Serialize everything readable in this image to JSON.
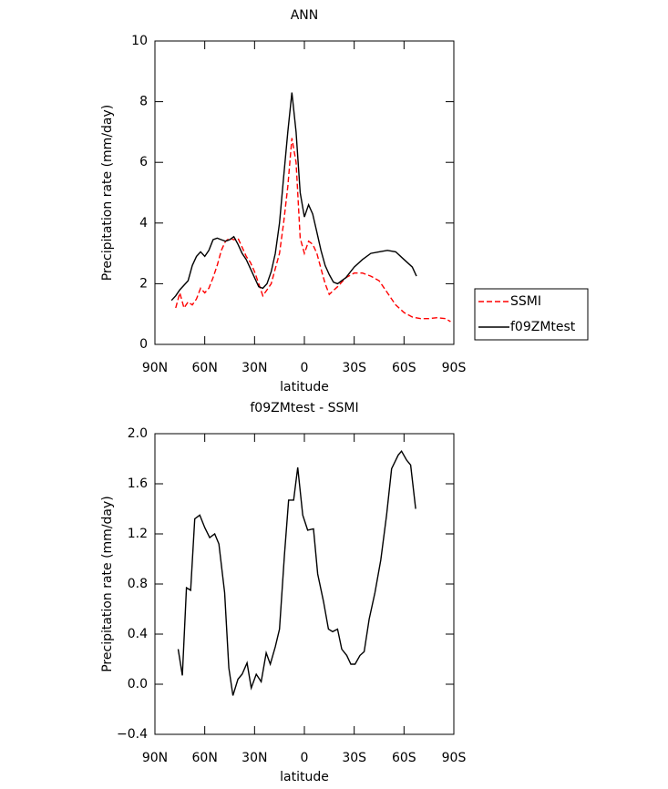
{
  "chart_data": [
    {
      "type": "line",
      "title": "ANN",
      "xlabel": "latitude",
      "ylabel": "Precipitation rate (mm/day)",
      "xlim": [
        90,
        -90
      ],
      "xticks": [
        {
          "value": 90,
          "label": "90N"
        },
        {
          "value": 60,
          "label": "60N"
        },
        {
          "value": 30,
          "label": "30N"
        },
        0,
        {
          "value": -30,
          "label": "30S"
        },
        {
          "value": -60,
          "label": "60S"
        },
        {
          "value": -90,
          "label": "90S"
        }
      ],
      "ylim": [
        0,
        10
      ],
      "yticks": [
        0,
        2,
        4,
        6,
        8,
        10
      ],
      "legend": "right",
      "series": [
        {
          "name": "SSMI",
          "color": "#ff0000",
          "style": "dashed",
          "x": [
            77.5,
            75,
            72.5,
            70,
            67.5,
            65,
            62.5,
            60,
            57.5,
            55,
            52.5,
            50,
            47.5,
            45,
            42.5,
            40,
            37.5,
            35,
            32.5,
            30,
            27.5,
            25,
            22.5,
            20,
            17.5,
            15,
            12.5,
            10,
            7.5,
            5,
            2.5,
            0,
            -2.5,
            -5,
            -7.5,
            -10,
            -12.5,
            -15,
            -20,
            -25,
            -30,
            -35,
            -40,
            -45,
            -50,
            -55,
            -60,
            -65,
            -70,
            -75,
            -80,
            -85,
            -88
          ],
          "values": [
            1.2,
            1.7,
            1.2,
            1.4,
            1.3,
            1.5,
            1.85,
            1.7,
            1.85,
            2.2,
            2.6,
            3.1,
            3.4,
            3.5,
            3.45,
            3.5,
            3.2,
            2.9,
            2.7,
            2.4,
            2.0,
            1.6,
            1.8,
            2.0,
            2.5,
            3.0,
            4.0,
            5.2,
            6.8,
            6.0,
            3.5,
            3.0,
            3.4,
            3.3,
            3.0,
            2.5,
            2.0,
            1.65,
            1.9,
            2.2,
            2.35,
            2.35,
            2.25,
            2.1,
            1.7,
            1.3,
            1.05,
            0.9,
            0.85,
            0.85,
            0.88,
            0.85,
            0.75
          ]
        },
        {
          "name": "f09ZMtest",
          "color": "#000000",
          "style": "solid",
          "x": [
            80,
            77.5,
            75,
            70,
            67.5,
            65,
            62.5,
            60,
            57.5,
            55,
            52.5,
            50,
            47.5,
            45,
            42.5,
            40,
            37.5,
            35,
            32.5,
            30,
            27.5,
            25,
            22.5,
            20,
            17.5,
            15,
            12.5,
            10,
            7.5,
            5,
            2.5,
            0,
            -2.5,
            -5,
            -7.5,
            -10,
            -12.5,
            -15,
            -17.5,
            -20,
            -25,
            -30,
            -35,
            -40,
            -45,
            -50,
            -55,
            -60,
            -65,
            -67.5
          ],
          "values": [
            1.45,
            1.6,
            1.8,
            2.1,
            2.6,
            2.9,
            3.05,
            2.9,
            3.1,
            3.45,
            3.5,
            3.45,
            3.4,
            3.45,
            3.55,
            3.3,
            3.0,
            2.8,
            2.5,
            2.2,
            1.9,
            1.85,
            2.0,
            2.4,
            3.0,
            4.0,
            5.5,
            7.0,
            8.3,
            7.0,
            5.0,
            4.2,
            4.6,
            4.3,
            3.7,
            3.1,
            2.6,
            2.3,
            2.05,
            2.0,
            2.2,
            2.55,
            2.8,
            3.0,
            3.05,
            3.1,
            3.05,
            2.8,
            2.55,
            2.25
          ]
        }
      ]
    },
    {
      "type": "line",
      "title": "f09ZMtest - SSMI",
      "xlabel": "latitude",
      "ylabel": "Precipitation rate (mm/day)",
      "xlim": [
        90,
        -90
      ],
      "xticks": [
        {
          "value": 90,
          "label": "90N"
        },
        {
          "value": 60,
          "label": "60N"
        },
        {
          "value": 30,
          "label": "30N"
        },
        0,
        {
          "value": -30,
          "label": "30S"
        },
        {
          "value": -60,
          "label": "60S"
        },
        {
          "value": -90,
          "label": "90S"
        }
      ],
      "ylim": [
        -0.4,
        2.0
      ],
      "yticks": [
        {
          "value": -0.4,
          "label": "−0.4"
        },
        {
          "value": 0,
          "label": "0.0"
        },
        0.4,
        0.8,
        1.2,
        1.6,
        {
          "value": 2.0,
          "label": "2.0"
        }
      ],
      "series": [
        {
          "color": "#000000",
          "style": "solid",
          "x": [
            76,
            73.5,
            71,
            68.5,
            66,
            63,
            60,
            57,
            54,
            51.5,
            48,
            45.5,
            43,
            40,
            37.5,
            34.5,
            32,
            29,
            26,
            23,
            20.5,
            17.5,
            15,
            12,
            9.5,
            6.5,
            4,
            1,
            -2,
            -5.5,
            -8,
            -11.5,
            -14.5,
            -17,
            -20,
            -22.5,
            -25.5,
            -28,
            -30.5,
            -33.5,
            -36,
            -39,
            -42.5,
            -46,
            -49.5,
            -52.5,
            -56.5,
            -58.5,
            -61.5,
            -64,
            -67
          ],
          "values": [
            0.28,
            0.07,
            0.77,
            0.75,
            1.32,
            1.35,
            1.25,
            1.17,
            1.2,
            1.12,
            0.73,
            0.13,
            -0.09,
            0.04,
            0.08,
            0.17,
            -0.03,
            0.08,
            0.02,
            0.25,
            0.16,
            0.3,
            0.44,
            1.03,
            1.47,
            1.47,
            1.73,
            1.35,
            1.23,
            1.24,
            0.88,
            0.66,
            0.44,
            0.42,
            0.44,
            0.28,
            0.23,
            0.16,
            0.16,
            0.23,
            0.26,
            0.52,
            0.73,
            0.99,
            1.35,
            1.72,
            1.83,
            1.86,
            1.79,
            1.75,
            1.4
          ]
        }
      ]
    }
  ]
}
